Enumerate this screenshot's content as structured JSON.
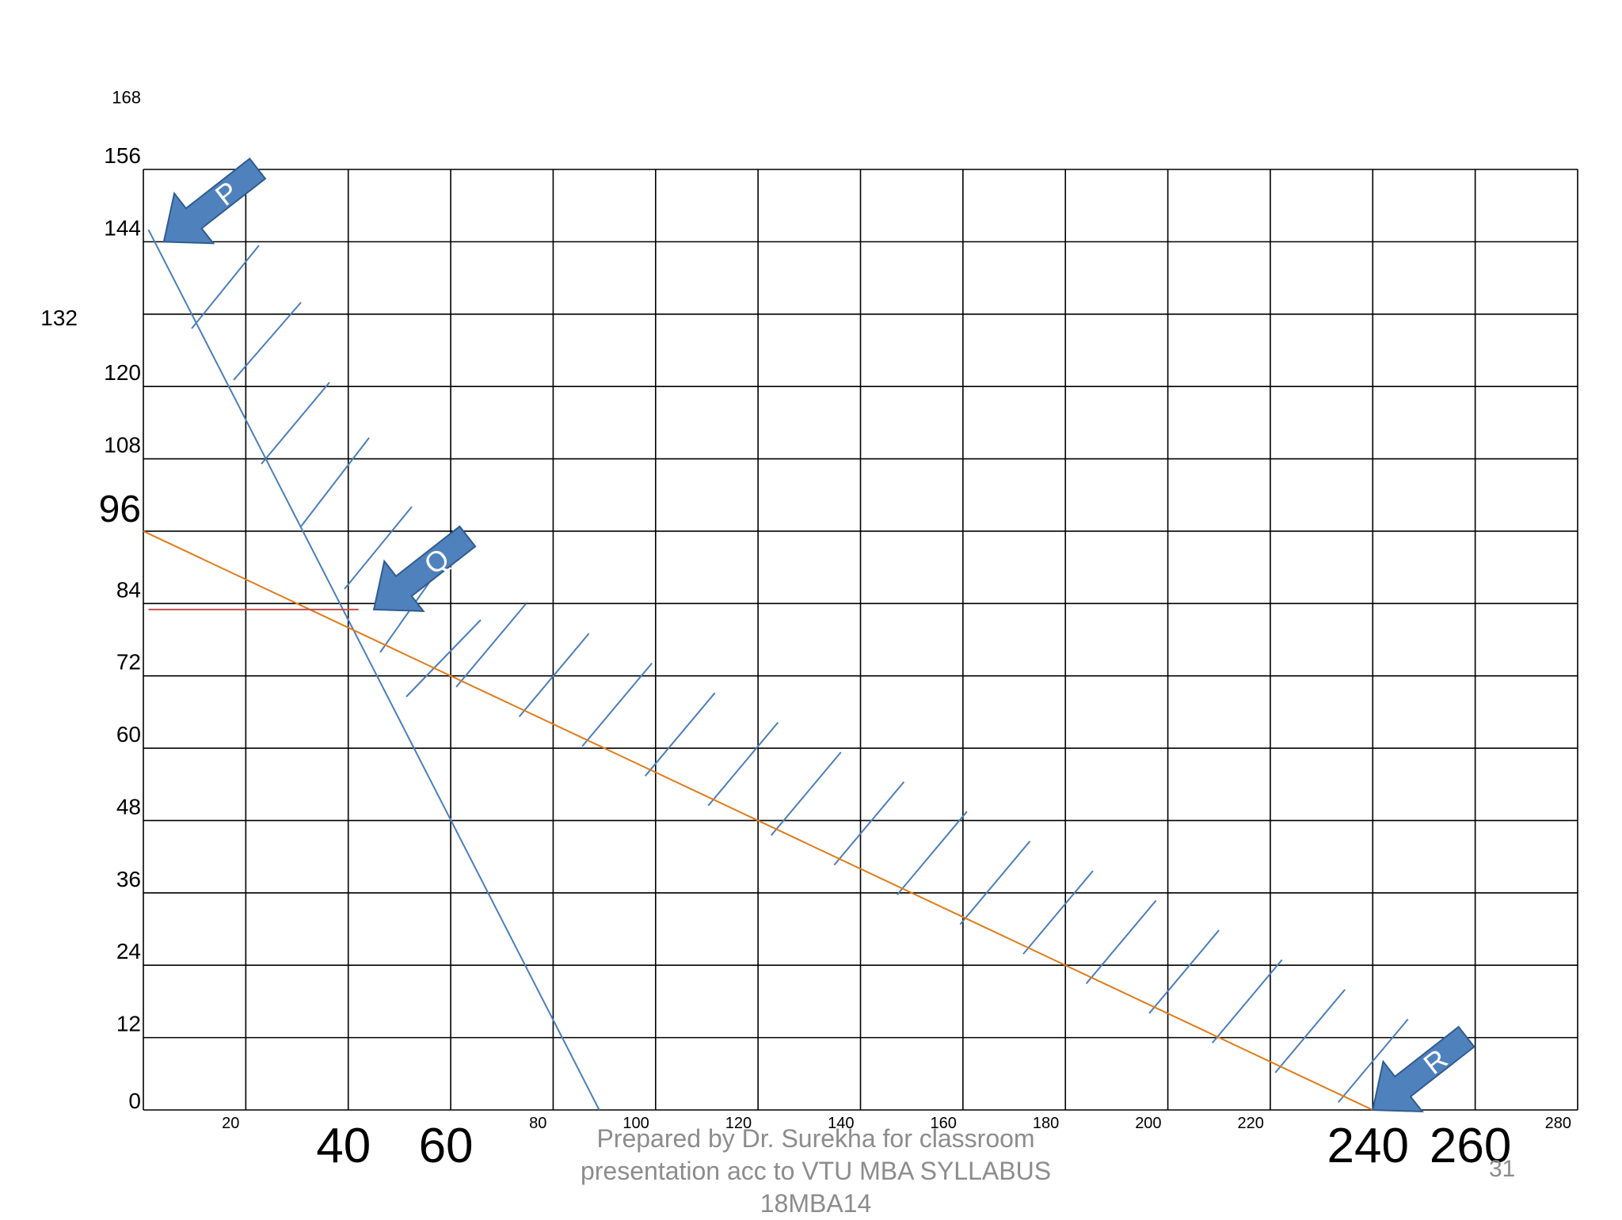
{
  "chart_data": {
    "type": "line",
    "title": "",
    "xlabel": "",
    "ylabel": "",
    "xlim": [
      0,
      280
    ],
    "ylim": [
      0,
      156
    ],
    "x_grid_values": [
      0,
      20,
      40,
      60,
      80,
      100,
      120,
      140,
      160,
      180,
      200,
      220,
      240,
      260,
      280
    ],
    "y_grid_values": [
      0,
      12,
      24,
      36,
      48,
      60,
      72,
      84,
      96,
      108,
      120,
      132,
      144,
      156
    ],
    "x_tick_labels": [
      {
        "value": 20,
        "text": "20",
        "style": "small"
      },
      {
        "value": 40,
        "text": "40",
        "style": "large"
      },
      {
        "value": 60,
        "text": "60",
        "style": "large"
      },
      {
        "value": 80,
        "text": "80",
        "style": "small"
      },
      {
        "value": 100,
        "text": "100",
        "style": "small"
      },
      {
        "value": 120,
        "text": "120",
        "style": "small"
      },
      {
        "value": 140,
        "text": "140",
        "style": "small"
      },
      {
        "value": 160,
        "text": "160",
        "style": "small"
      },
      {
        "value": 180,
        "text": "180",
        "style": "small"
      },
      {
        "value": 200,
        "text": "200",
        "style": "small"
      },
      {
        "value": 220,
        "text": "220",
        "style": "small"
      },
      {
        "value": 240,
        "text": "240",
        "style": "large"
      },
      {
        "value": 260,
        "text": "260",
        "style": "large"
      },
      {
        "value": 280,
        "text": "280",
        "style": "small"
      }
    ],
    "y_tick_labels": [
      {
        "value": 0,
        "text": "0",
        "style": "normal"
      },
      {
        "value": 12,
        "text": "12",
        "style": "normal"
      },
      {
        "value": 24,
        "text": "24",
        "style": "normal"
      },
      {
        "value": 36,
        "text": "36",
        "style": "normal"
      },
      {
        "value": 48,
        "text": "48",
        "style": "normal"
      },
      {
        "value": 60,
        "text": "60",
        "style": "normal"
      },
      {
        "value": 72,
        "text": "72",
        "style": "normal"
      },
      {
        "value": 84,
        "text": "84",
        "style": "normal"
      },
      {
        "value": 96,
        "text": "96",
        "style": "large"
      },
      {
        "value": 108,
        "text": "108",
        "style": "normal"
      },
      {
        "value": 120,
        "text": "120",
        "style": "normal"
      },
      {
        "value": 132,
        "text": "132",
        "style": "offset"
      },
      {
        "value": 144,
        "text": "144",
        "style": "normal"
      },
      {
        "value": 156,
        "text": "156",
        "style": "normal"
      },
      {
        "value": 168,
        "text": "168",
        "style": "small"
      }
    ],
    "series": [
      {
        "color": "#4a7ebb",
        "points": [
          [
            1,
            146
          ],
          [
            89,
            0
          ]
        ]
      },
      {
        "color": "#e07b1a",
        "points": [
          [
            0,
            96
          ],
          [
            240,
            0
          ]
        ]
      },
      {
        "color": "#c0504d",
        "points": [
          [
            1,
            83
          ],
          [
            42,
            83
          ]
        ]
      }
    ],
    "annotations": [
      {
        "label": "P",
        "x": 4,
        "y": 144,
        "direction": "down-left"
      },
      {
        "label": "Q",
        "x": 45,
        "y": 83,
        "direction": "down-left"
      },
      {
        "label": "R",
        "x": 240,
        "y": 0,
        "direction": "down-left"
      }
    ],
    "arrow_color": "#4f81bd"
  },
  "footer": {
    "lines": [
      "Prepared by Dr. Surekha for classroom",
      "presentation acc to VTU MBA SYLLABUS",
      "18MBA14"
    ],
    "slide_number": "31"
  }
}
